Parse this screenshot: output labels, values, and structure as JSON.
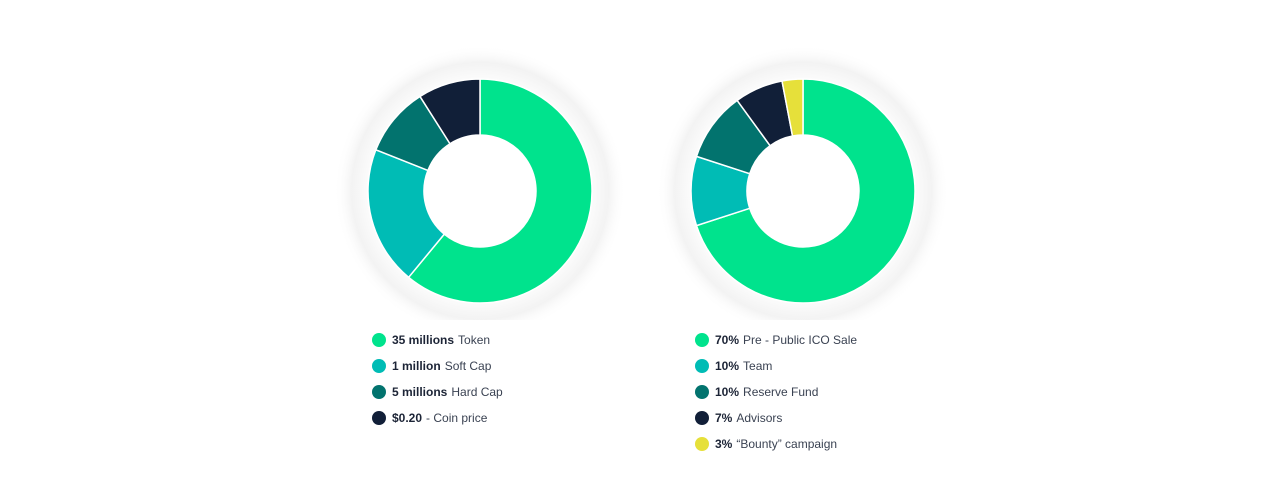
{
  "chart_data": [
    {
      "type": "pie",
      "series": [
        {
          "value_text": "35 millions",
          "label": "Token",
          "share": 0.61,
          "color": "#00e38d"
        },
        {
          "value_text": "1 million",
          "label": "Soft Cap",
          "share": 0.2,
          "color": "#00bcb5"
        },
        {
          "value_text": "5 millions",
          "label": "Hard Cap",
          "share": 0.1,
          "color": "#02736e"
        },
        {
          "value_text": "$0.20",
          "label": "- Coin price",
          "share": 0.09,
          "color": "#111f38"
        }
      ]
    },
    {
      "type": "pie",
      "series": [
        {
          "value_text": "70%",
          "label": "Pre - Public ICO Sale",
          "share": 0.7,
          "color": "#00e38d"
        },
        {
          "value_text": "10%",
          "label": "Team",
          "share": 0.1,
          "color": "#00bcb5"
        },
        {
          "value_text": "10%",
          "label": "Reserve Fund",
          "share": 0.1,
          "color": "#02736e"
        },
        {
          "value_text": "7%",
          "label": "Advisors",
          "share": 0.07,
          "color": "#111f38"
        },
        {
          "value_text": "3%",
          "label": "“Bounty” campaign",
          "share": 0.03,
          "color": "#e6e03a"
        }
      ]
    }
  ]
}
